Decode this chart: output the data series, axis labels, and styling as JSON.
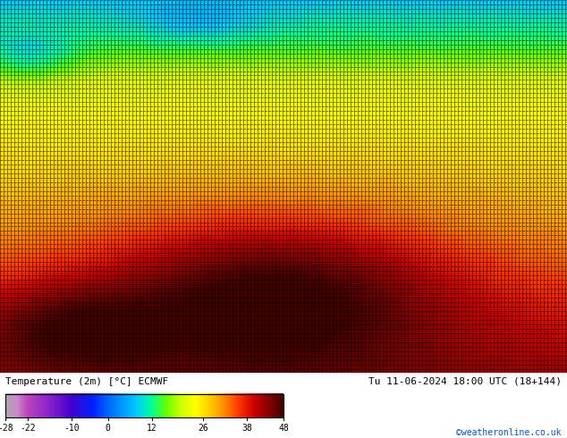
{
  "title_left": "Temperature (2m) [°C] ECMWF",
  "title_right": "Tu 11-06-2024 18:00 UTC (18+144)",
  "credit": "©weatheronline.co.uk",
  "colorbar_ticks": [
    -28,
    -22,
    -10,
    0,
    12,
    26,
    38,
    48
  ],
  "fig_width": 6.34,
  "fig_height": 4.9,
  "bg_color": "#ffffff",
  "seed": 42,
  "cmap_stops": [
    [
      -28,
      "#aaaaaa"
    ],
    [
      -25,
      "#cc88cc"
    ],
    [
      -22,
      "#bb44bb"
    ],
    [
      -16,
      "#8822cc"
    ],
    [
      -10,
      "#4400cc"
    ],
    [
      -4,
      "#0022ff"
    ],
    [
      0,
      "#0066ff"
    ],
    [
      4,
      "#0099ff"
    ],
    [
      8,
      "#00ccff"
    ],
    [
      12,
      "#00ff99"
    ],
    [
      16,
      "#66ff00"
    ],
    [
      20,
      "#ccff00"
    ],
    [
      24,
      "#ffff00"
    ],
    [
      28,
      "#ffcc00"
    ],
    [
      32,
      "#ff8800"
    ],
    [
      36,
      "#ff3300"
    ],
    [
      40,
      "#cc0000"
    ],
    [
      44,
      "#880000"
    ],
    [
      48,
      "#440000"
    ]
  ]
}
